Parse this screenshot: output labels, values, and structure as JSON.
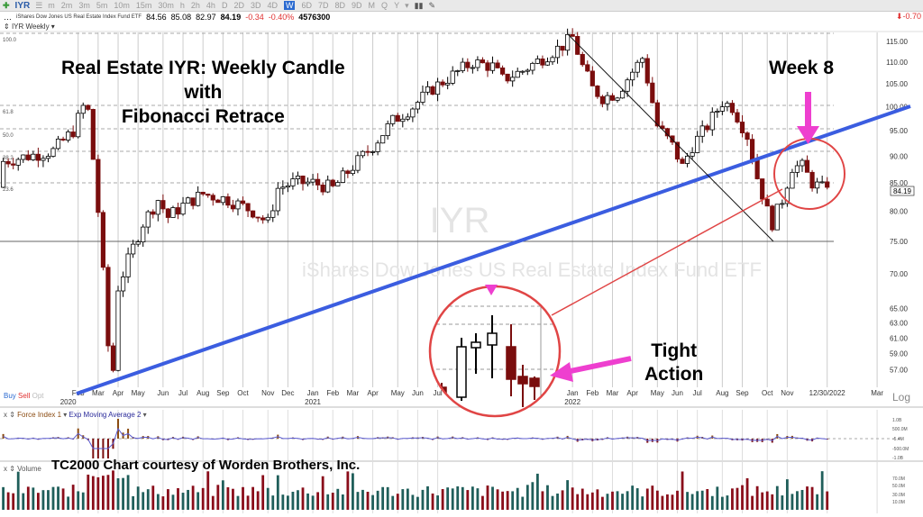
{
  "toolbar": {
    "symbol": "IYR",
    "timeframes": [
      "m",
      "2m",
      "3m",
      "5m",
      "10m",
      "15m",
      "30m",
      "h",
      "2h",
      "4h",
      "D",
      "2D",
      "3D",
      "4D",
      "W",
      "6D",
      "7D",
      "8D",
      "9D",
      "M",
      "Q",
      "Y"
    ],
    "active": "W"
  },
  "quote": {
    "name": "iShares Dow Jones US Real Estate Index Fund ETF",
    "open": "84.56",
    "high": "85.08",
    "low": "82.97",
    "last": "84.19",
    "change": "-0.34",
    "change_pct": "-0.40%",
    "volume": "4576300",
    "right_change": "-0.70"
  },
  "chart_label": "IYR Weekly",
  "watermark": {
    "symbol": "IYR",
    "description": "iShares Dow Jones US Real Estate Index Fund ETF"
  },
  "annotations": {
    "title_line1": "Real Estate IYR:  Weekly Candle",
    "title_line2": "with",
    "title_line3": "Fibonacci Retrace",
    "week8": "Week 8",
    "tight1": "Tight",
    "tight2": "Action",
    "credit": "TC2000 Chart courtesy of Worden Brothers, Inc."
  },
  "trade_buttons": {
    "buy": "Buy",
    "sell": "Sell",
    "opt": "Opt"
  },
  "scale_mode": "Log",
  "price_tag": "84.19",
  "indicators": {
    "force_index": "Force Index 1",
    "ema": "Exp Moving Average 2",
    "volume": "Volume",
    "force_ticks": [
      "1.0B",
      "500.0M",
      "-5.4M",
      "-500.0M",
      "-1.0B"
    ],
    "volume_ticks": [
      "70.0M",
      "50.0M",
      "30.0M",
      "10.0M"
    ]
  },
  "chart_data": {
    "type": "candlestick",
    "title": "IYR Weekly",
    "y_scale": "log",
    "ylim": [
      55,
      118
    ],
    "y_ticks": [
      "115.00",
      "110.00",
      "105.00",
      "100.00",
      "95.00",
      "90.00",
      "85.00",
      "80.00",
      "75.00",
      "70.00",
      "65.00",
      "63.00",
      "61.00",
      "59.00",
      "57.00"
    ],
    "fib_levels": [
      "100.0",
      "61.8",
      "50.0",
      "38.2",
      "23.6"
    ],
    "x_ticks": [
      {
        "w": 5,
        "label": "Feb"
      },
      {
        "w": 9,
        "label": "Mar"
      },
      {
        "w": 13,
        "label": "Apr"
      },
      {
        "w": 17,
        "label": "May"
      },
      {
        "w": 22,
        "label": "Jun"
      },
      {
        "w": 26,
        "label": "Jul"
      },
      {
        "w": 30,
        "label": "Aug"
      },
      {
        "w": 34,
        "label": "Sep"
      },
      {
        "w": 38,
        "label": "Oct"
      },
      {
        "w": 43,
        "label": "Nov"
      },
      {
        "w": 47,
        "label": "Dec"
      },
      {
        "w": 52,
        "label": "Jan"
      },
      {
        "w": 56,
        "label": "Feb"
      },
      {
        "w": 60,
        "label": "Mar"
      },
      {
        "w": 64,
        "label": "Apr"
      },
      {
        "w": 69,
        "label": "May"
      },
      {
        "w": 73,
        "label": "Jun"
      },
      {
        "w": 77,
        "label": "Jul"
      },
      {
        "w": 104,
        "label": "Jan"
      },
      {
        "w": 108,
        "label": "Feb"
      },
      {
        "w": 112,
        "label": "Mar"
      },
      {
        "w": 116,
        "label": "Apr"
      },
      {
        "w": 121,
        "label": "May"
      },
      {
        "w": 125,
        "label": "Jun"
      },
      {
        "w": 129,
        "label": "Jul"
      },
      {
        "w": 134,
        "label": "Aug"
      },
      {
        "w": 138,
        "label": "Sep"
      },
      {
        "w": 143,
        "label": "Oct"
      },
      {
        "w": 147,
        "label": "Nov"
      },
      {
        "w": 155,
        "label": "12/30/2022"
      },
      {
        "w": 165,
        "label": "Mar"
      }
    ],
    "year_labels": [
      {
        "w": 3,
        "label": "2020"
      },
      {
        "w": 52,
        "label": "2021"
      },
      {
        "w": 104,
        "label": "2022"
      }
    ],
    "keypoints": [
      [
        -10,
        89
      ],
      [
        -5,
        90
      ],
      [
        0,
        91
      ],
      [
        4,
        95
      ],
      [
        6,
        100
      ],
      [
        7,
        99
      ],
      [
        9,
        80
      ],
      [
        11,
        60
      ],
      [
        12,
        57
      ],
      [
        13,
        68
      ],
      [
        15,
        72
      ],
      [
        18,
        78
      ],
      [
        21,
        82
      ],
      [
        23,
        79
      ],
      [
        26,
        81
      ],
      [
        30,
        83
      ],
      [
        35,
        82
      ],
      [
        40,
        80
      ],
      [
        43,
        78
      ],
      [
        45,
        84
      ],
      [
        48,
        85
      ],
      [
        52,
        85
      ],
      [
        56,
        84
      ],
      [
        60,
        88
      ],
      [
        64,
        92
      ],
      [
        68,
        97
      ],
      [
        72,
        100
      ],
      [
        76,
        104
      ],
      [
        80,
        107
      ],
      [
        84,
        110
      ],
      [
        88,
        109
      ],
      [
        90,
        106
      ],
      [
        94,
        108
      ],
      [
        98,
        111
      ],
      [
        102,
        114
      ],
      [
        104,
        116
      ],
      [
        106,
        109
      ],
      [
        108,
        104
      ],
      [
        110,
        102
      ],
      [
        113,
        103
      ],
      [
        118,
        111
      ],
      [
        121,
        96
      ],
      [
        124,
        92
      ],
      [
        126,
        88
      ],
      [
        128,
        92
      ],
      [
        131,
        96
      ],
      [
        134,
        101
      ],
      [
        136,
        100
      ],
      [
        139,
        94
      ],
      [
        141,
        86
      ],
      [
        143,
        80
      ],
      [
        144,
        78
      ],
      [
        146,
        82
      ],
      [
        148,
        88
      ],
      [
        150,
        88
      ],
      [
        152,
        85
      ],
      [
        154,
        84
      ],
      [
        155,
        84.19
      ]
    ],
    "trendlines": [
      {
        "name": "support-uptrend",
        "color": "#3b5de0"
      },
      {
        "name": "downtrend",
        "color": "#111111"
      }
    ]
  }
}
